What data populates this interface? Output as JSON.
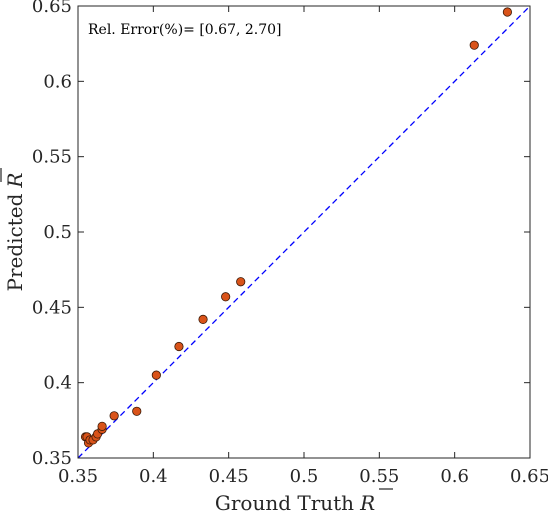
{
  "chart_data": {
    "type": "scatter",
    "title": "",
    "xlabel": "Ground Truth",
    "ylabel": "Predicted",
    "label_symbol": "R",
    "xlim": [
      0.35,
      0.65
    ],
    "ylim": [
      0.35,
      0.65
    ],
    "xticks": [
      0.35,
      0.4,
      0.45,
      0.5,
      0.55,
      0.6,
      0.65
    ],
    "yticks": [
      0.35,
      0.4,
      0.45,
      0.5,
      0.55,
      0.6,
      0.65
    ],
    "xtick_labels": [
      "0.35",
      "0.4",
      "0.45",
      "0.5",
      "0.55",
      "0.6",
      "0.65"
    ],
    "ytick_labels": [
      "0.35",
      "0.4",
      "0.45",
      "0.5",
      "0.55",
      "0.6",
      "0.65"
    ],
    "grid": false,
    "annotation": "Rel. Error(%)= [0.67, 2.70]",
    "reference_line": "y = x",
    "colors": {
      "marker_fill": "#d95319",
      "marker_edge": "#3a1a08",
      "reference_line": "#0000ff",
      "axes": "#262626"
    },
    "series": [
      {
        "x": [
          0.355,
          0.356,
          0.357,
          0.358,
          0.36,
          0.362,
          0.363,
          0.366,
          0.366,
          0.374,
          0.389,
          0.402,
          0.417,
          0.433,
          0.448,
          0.458,
          0.613,
          0.635
        ],
        "y": [
          0.364,
          0.364,
          0.36,
          0.362,
          0.362,
          0.364,
          0.366,
          0.369,
          0.371,
          0.378,
          0.381,
          0.405,
          0.424,
          0.442,
          0.457,
          0.467,
          0.624,
          0.646
        ]
      }
    ]
  }
}
